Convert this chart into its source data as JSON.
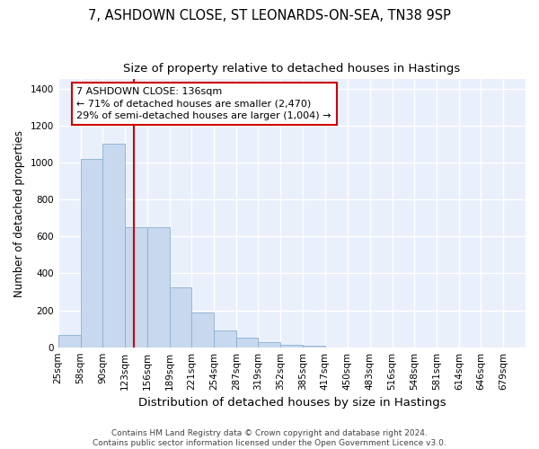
{
  "title": "7, ASHDOWN CLOSE, ST LEONARDS-ON-SEA, TN38 9SP",
  "subtitle": "Size of property relative to detached houses in Hastings",
  "xlabel": "Distribution of detached houses by size in Hastings",
  "ylabel": "Number of detached properties",
  "bar_values": [
    65,
    1020,
    1100,
    650,
    650,
    325,
    190,
    90,
    50,
    30,
    15,
    10,
    0,
    0,
    0,
    0,
    0,
    0,
    0,
    0,
    0
  ],
  "bin_labels": [
    "25sqm",
    "58sqm",
    "90sqm",
    "123sqm",
    "156sqm",
    "189sqm",
    "221sqm",
    "254sqm",
    "287sqm",
    "319sqm",
    "352sqm",
    "385sqm",
    "417sqm",
    "450sqm",
    "483sqm",
    "516sqm",
    "548sqm",
    "581sqm",
    "614sqm",
    "646sqm",
    "679sqm"
  ],
  "bin_edges": [
    25,
    58,
    90,
    123,
    156,
    189,
    221,
    254,
    287,
    319,
    352,
    385,
    417,
    450,
    483,
    516,
    548,
    581,
    614,
    646,
    679,
    712
  ],
  "bar_color": "#c8d8ee",
  "bar_edge_color": "#8ab0d0",
  "background_color": "#eaf0fb",
  "grid_color": "#ffffff",
  "fig_color": "#ffffff",
  "property_size": 136,
  "annotation_line1": "7 ASHDOWN CLOSE: 136sqm",
  "annotation_line2": "← 71% of detached houses are smaller (2,470)",
  "annotation_line3": "29% of semi-detached houses are larger (1,004) →",
  "vline_color": "#cc0000",
  "annotation_box_edgecolor": "#cc0000",
  "ylim": [
    0,
    1450
  ],
  "yticks": [
    0,
    200,
    400,
    600,
    800,
    1000,
    1200,
    1400
  ],
  "footer": "Contains HM Land Registry data © Crown copyright and database right 2024.\nContains public sector information licensed under the Open Government Licence v3.0.",
  "title_fontsize": 10.5,
  "subtitle_fontsize": 9.5,
  "xlabel_fontsize": 9.5,
  "ylabel_fontsize": 8.5,
  "tick_fontsize": 7.5,
  "annot_fontsize": 8,
  "footer_fontsize": 6.5
}
